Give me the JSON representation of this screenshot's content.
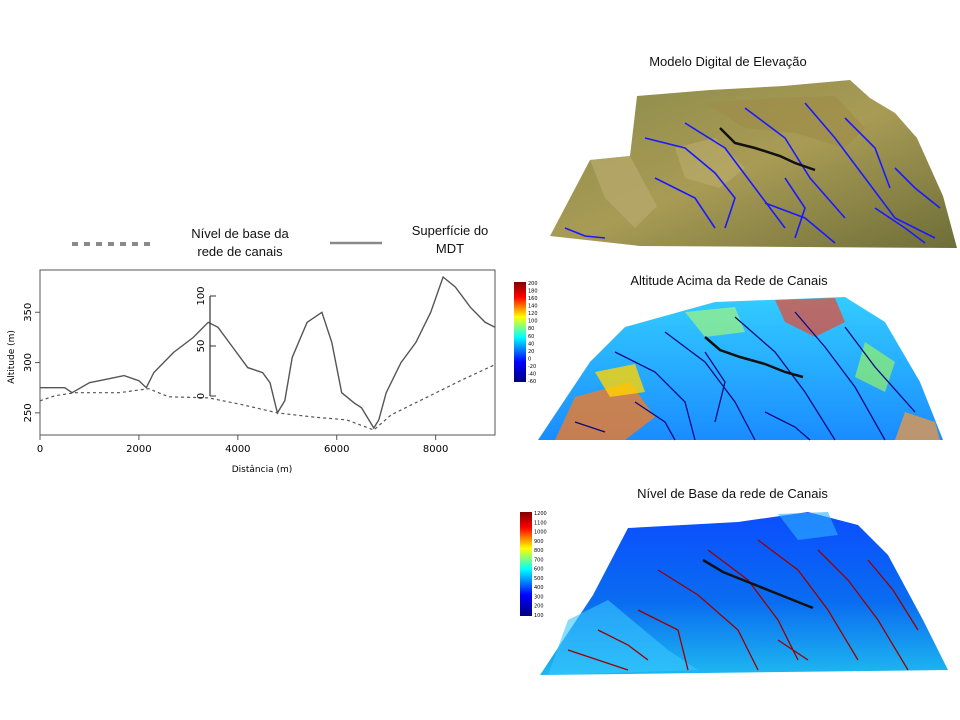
{
  "legend": {
    "dashed_label_line1": "Nível de base da",
    "dashed_label_line2": "rede de canais",
    "solid_label_line1": "Superfície do",
    "solid_label_line2": "MDT"
  },
  "panels": {
    "dem_title": "Modelo Digital de Elevação",
    "hand_title": "Altitude Acima da Rede de Canais",
    "base_title": "Nível de Base da rede de Canais"
  },
  "colorbars": {
    "hand_ticks": [
      "200",
      "180",
      "160",
      "140",
      "120",
      "100",
      "80",
      "60",
      "40",
      "20",
      "0",
      "-20",
      "-40",
      "-60"
    ],
    "base_ticks": [
      "1200",
      "1100",
      "1000",
      "900",
      "800",
      "700",
      "600",
      "500",
      "400",
      "300",
      "200",
      "100"
    ]
  },
  "chart_data": {
    "type": "line",
    "title": "",
    "xlabel": "Distância (m)",
    "ylabel": "Altitude (m)",
    "xlim": [
      0,
      9200
    ],
    "ylim": [
      228,
      392
    ],
    "x_ticks": [
      "0",
      "2000",
      "4000",
      "6000",
      "8000"
    ],
    "y_ticks": [
      "250",
      "300",
      "350"
    ],
    "inset_axis_ticks": [
      "0",
      "50",
      "100"
    ],
    "series": [
      {
        "style": "solid",
        "points": [
          [
            0,
            275
          ],
          [
            500,
            275
          ],
          [
            650,
            270
          ],
          [
            1000,
            280
          ],
          [
            1400,
            284
          ],
          [
            1700,
            287
          ],
          [
            2000,
            282
          ],
          [
            2150,
            275
          ],
          [
            2300,
            290
          ],
          [
            2700,
            310
          ],
          [
            3100,
            325
          ],
          [
            3400,
            340
          ],
          [
            3600,
            335
          ],
          [
            3900,
            315
          ],
          [
            4200,
            295
          ],
          [
            4500,
            290
          ],
          [
            4650,
            280
          ],
          [
            4800,
            250
          ],
          [
            4950,
            262
          ],
          [
            5100,
            305
          ],
          [
            5400,
            340
          ],
          [
            5700,
            350
          ],
          [
            5900,
            320
          ],
          [
            6100,
            270
          ],
          [
            6350,
            260
          ],
          [
            6500,
            255
          ],
          [
            6750,
            235
          ],
          [
            6850,
            243
          ],
          [
            7000,
            270
          ],
          [
            7300,
            300
          ],
          [
            7600,
            320
          ],
          [
            7900,
            350
          ],
          [
            8150,
            385
          ],
          [
            8400,
            375
          ],
          [
            8700,
            355
          ],
          [
            9000,
            340
          ],
          [
            9200,
            335
          ]
        ]
      },
      {
        "style": "dashed",
        "points": [
          [
            0,
            262
          ],
          [
            300,
            267
          ],
          [
            700,
            270
          ],
          [
            1600,
            270
          ],
          [
            2200,
            274
          ],
          [
            2600,
            266
          ],
          [
            3400,
            265
          ],
          [
            4100,
            258
          ],
          [
            4800,
            250
          ],
          [
            5500,
            246
          ],
          [
            6200,
            243
          ],
          [
            6750,
            233
          ],
          [
            7100,
            248
          ],
          [
            7800,
            265
          ],
          [
            8500,
            282
          ],
          [
            9200,
            298
          ]
        ]
      }
    ]
  }
}
